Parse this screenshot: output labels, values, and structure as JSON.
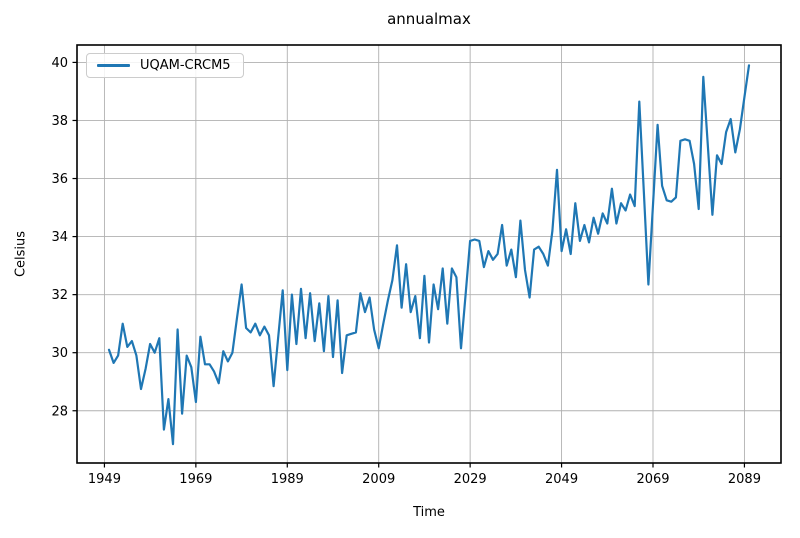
{
  "title": "annualmax",
  "legend": {
    "label": "UQAM-CRCM5"
  },
  "chart_data": {
    "type": "line",
    "title": "annualmax",
    "xlabel": "Time",
    "ylabel": "Celsius",
    "grid": true,
    "legend_position": "upper left",
    "xlim": [
      1943,
      2097
    ],
    "ylim": [
      26.2,
      40.6
    ],
    "x_ticks": [
      1949,
      1969,
      1989,
      2009,
      2029,
      2049,
      2069,
      2089
    ],
    "x_tick_labels": [
      "1949",
      "1969",
      "1989",
      "2009",
      "2029",
      "2049",
      "2069",
      "2089"
    ],
    "y_ticks": [
      28,
      30,
      32,
      34,
      36,
      38,
      40
    ],
    "y_tick_labels": [
      "28",
      "30",
      "32",
      "34",
      "36",
      "38",
      "40"
    ],
    "grid_color": "#b0b0b0",
    "spine_color": "#000000",
    "x_start": 1950,
    "x_step": 1,
    "x_end": 2090,
    "series": [
      {
        "name": "UQAM-CRCM5",
        "color": "#1f77b4",
        "values": [
          30.1,
          29.65,
          29.9,
          31.0,
          30.2,
          30.4,
          29.9,
          28.75,
          29.45,
          30.3,
          30.0,
          30.5,
          27.35,
          28.4,
          26.85,
          30.8,
          27.9,
          29.9,
          29.5,
          28.3,
          30.55,
          29.6,
          29.6,
          29.35,
          28.95,
          30.05,
          29.7,
          30.0,
          31.2,
          32.35,
          30.85,
          30.7,
          31.0,
          30.6,
          30.9,
          30.6,
          28.85,
          30.5,
          32.15,
          29.4,
          32.0,
          30.3,
          32.2,
          30.5,
          32.05,
          30.4,
          31.7,
          30.05,
          31.95,
          29.85,
          31.8,
          29.3,
          30.6,
          30.65,
          30.7,
          32.05,
          31.4,
          31.9,
          30.8,
          30.15,
          31.0,
          31.8,
          32.5,
          33.7,
          31.55,
          33.05,
          31.4,
          31.95,
          30.5,
          32.65,
          30.35,
          32.35,
          31.5,
          32.9,
          31.0,
          32.9,
          32.6,
          30.15,
          32.0,
          33.85,
          33.9,
          33.85,
          32.95,
          33.5,
          33.2,
          33.4,
          34.4,
          33.0,
          33.55,
          32.6,
          34.55,
          32.85,
          31.9,
          33.55,
          33.65,
          33.4,
          33.0,
          34.2,
          36.3,
          33.5,
          34.25,
          33.4,
          35.15,
          33.85,
          34.4,
          33.8,
          34.65,
          34.1,
          34.8,
          34.45,
          35.65,
          34.45,
          35.15,
          34.9,
          35.45,
          35.05,
          38.65,
          35.5,
          32.35,
          35.1,
          37.85,
          35.75,
          35.25,
          35.2,
          35.35,
          37.3,
          37.35,
          37.3,
          36.5,
          34.95,
          39.5,
          37.1,
          34.75,
          36.8,
          36.5,
          37.6,
          38.05,
          36.9,
          37.7,
          38.8,
          39.9
        ]
      }
    ]
  }
}
